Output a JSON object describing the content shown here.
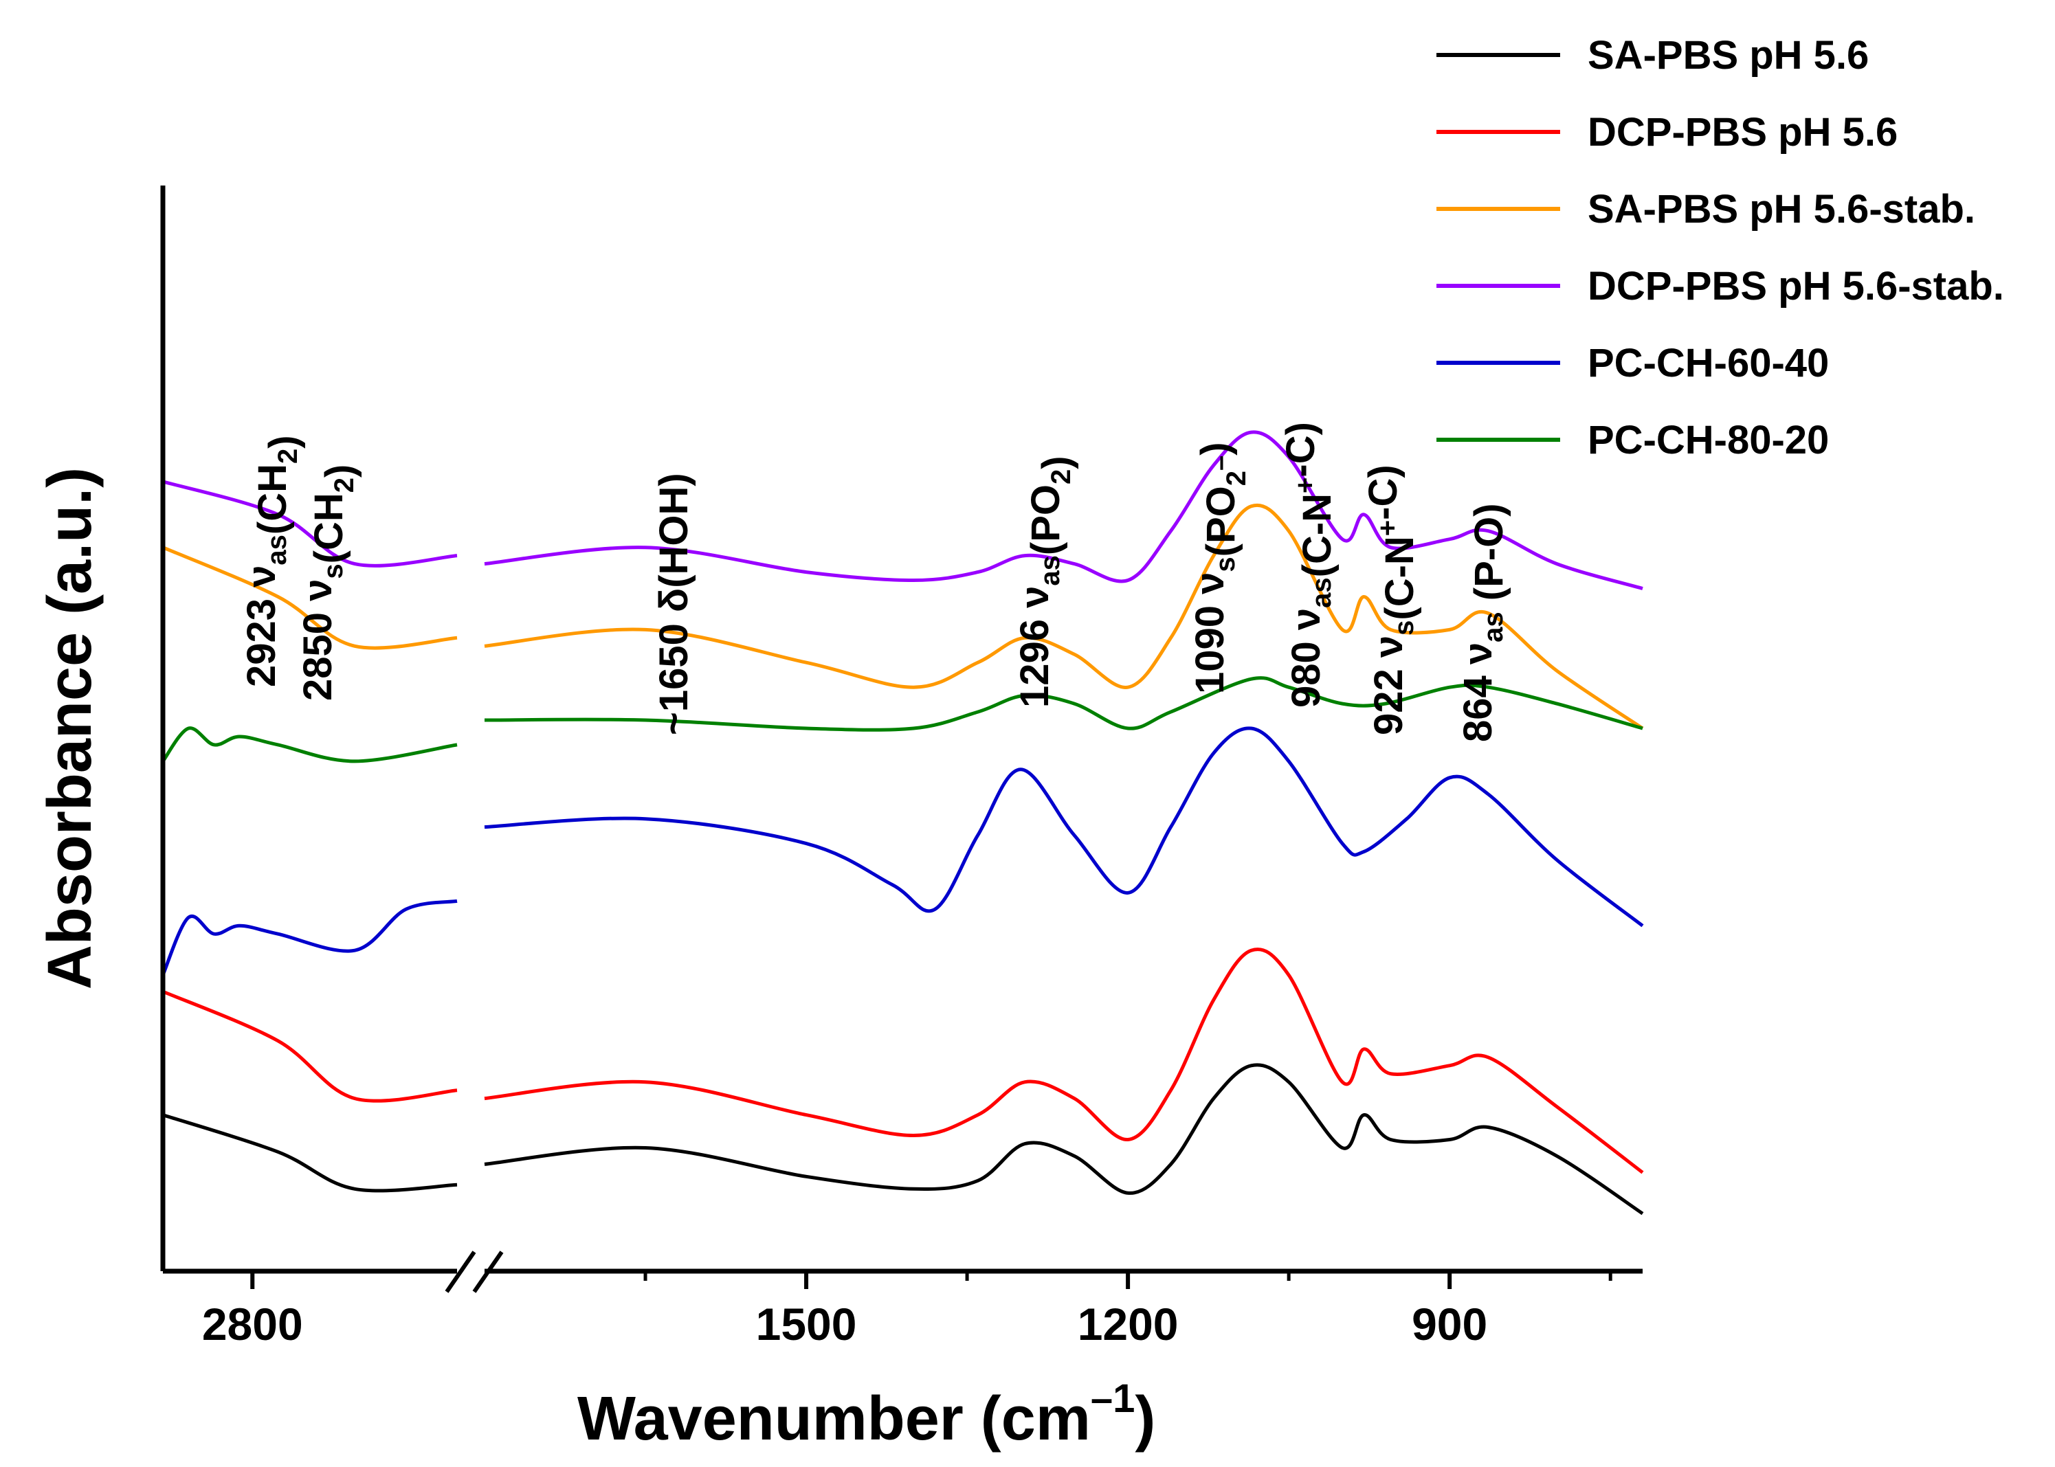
{
  "chart_data": {
    "type": "line",
    "title": "",
    "xlabel": "Wavenumber (cm",
    "xlabel_superscript": "–1",
    "xlabel_close": ")",
    "ylabel": "Absorbance (a.u.)",
    "y_ticks_shown": false,
    "axis_break": true,
    "segments": [
      {
        "name": "high-wavenumber",
        "xlim": [
          2870,
          2640
        ],
        "ticks": [
          2800
        ]
      },
      {
        "name": "fingerprint",
        "xlim": [
          1800,
          720
        ],
        "ticks": [
          1500,
          1200,
          900
        ],
        "minor_ticks": [
          1650,
          1350,
          1050,
          750
        ]
      }
    ],
    "x_tick_labels": [
      "2800",
      "1500",
      "1200",
      "900"
    ],
    "legend": {
      "placement": "top-right",
      "entries": [
        {
          "label": "SA-PBS pH 5.6",
          "color": "#000000"
        },
        {
          "label": "DCP-PBS pH 5.6",
          "color": "#ff0000"
        },
        {
          "label": "SA-PBS pH 5.6-stab.",
          "color": "#ff9900"
        },
        {
          "label": "DCP-PBS pH 5.6-stab.",
          "color": "#9900ff"
        },
        {
          "label": "PC-CH-60-40",
          "color": "#0000cc"
        },
        {
          "label": "PC-CH-80-20",
          "color": "#008000"
        }
      ]
    },
    "annotations": [
      {
        "wavenumber": 2923,
        "lead": "2923 ",
        "mode": "as",
        "group": "(CH",
        "group_sub": "2",
        "close": ")"
      },
      {
        "wavenumber": 2850,
        "lead": "2850 ",
        "mode": "s",
        "group": "(CH",
        "group_sub": "2",
        "close": ")"
      },
      {
        "wavenumber": 1650,
        "lead": "~1650 ",
        "mode_delta": "δ",
        "group": "(HOH)"
      },
      {
        "wavenumber": 1296,
        "lead": "1296 ",
        "mode": "as",
        "group": "(PO",
        "group_sub": "2",
        "close": ")"
      },
      {
        "wavenumber": 1090,
        "lead": "1090 ",
        "mode": "s",
        "group": "(PO",
        "group_sub": "2",
        "group_sup": "–",
        "close": ")"
      },
      {
        "wavenumber": 980,
        "lead": "980 ",
        "mode": "as",
        "group": "(C-N",
        "group_sup": "+",
        "close": "-C)"
      },
      {
        "wavenumber": 922,
        "lead": "922 ",
        "mode": "s",
        "group": "(C-N",
        "group_sup": "+",
        "close": "-C)"
      },
      {
        "wavenumber": 864,
        "lead": "864 ",
        "mode": "as",
        "group": " (P-O)"
      }
    ],
    "greek_nu": "ν",
    "series": [
      {
        "name": "SA-PBS pH 5.6",
        "color": "#000000",
        "offset": 0.8,
        "segment1": [
          [
            2870,
            1.2
          ],
          [
            2780,
            0.75
          ],
          [
            2720,
            0.3
          ],
          [
            2640,
            0.35
          ]
        ],
        "segment2": [
          [
            1800,
            0.6
          ],
          [
            1650,
            0.8
          ],
          [
            1500,
            0.45
          ],
          [
            1400,
            0.3
          ],
          [
            1340,
            0.4
          ],
          [
            1296,
            0.85
          ],
          [
            1250,
            0.7
          ],
          [
            1200,
            0.25
          ],
          [
            1160,
            0.6
          ],
          [
            1120,
            1.4
          ],
          [
            1085,
            1.8
          ],
          [
            1050,
            1.6
          ],
          [
            1000,
            0.8
          ],
          [
            980,
            1.2
          ],
          [
            955,
            0.9
          ],
          [
            900,
            0.9
          ],
          [
            864,
            1.05
          ],
          [
            800,
            0.7
          ],
          [
            720,
            0.0
          ]
        ]
      },
      {
        "name": "DCP-PBS pH 5.6",
        "color": "#ff0000",
        "offset": 2.0,
        "segment1": [
          [
            2870,
            2.7
          ],
          [
            2780,
            2.1
          ],
          [
            2720,
            1.4
          ],
          [
            2640,
            1.5
          ]
        ],
        "segment2": [
          [
            1800,
            1.4
          ],
          [
            1650,
            1.6
          ],
          [
            1500,
            1.2
          ],
          [
            1400,
            0.95
          ],
          [
            1340,
            1.2
          ],
          [
            1296,
            1.6
          ],
          [
            1250,
            1.4
          ],
          [
            1200,
            0.9
          ],
          [
            1160,
            1.5
          ],
          [
            1120,
            2.6
          ],
          [
            1085,
            3.2
          ],
          [
            1050,
            2.9
          ],
          [
            1000,
            1.6
          ],
          [
            980,
            2.0
          ],
          [
            955,
            1.7
          ],
          [
            900,
            1.8
          ],
          [
            864,
            1.9
          ],
          [
            800,
            1.3
          ],
          [
            720,
            0.5
          ]
        ]
      },
      {
        "name": "SA-PBS pH 5.6-stab.",
        "color": "#ff9900",
        "offset": 7.2,
        "segment1": [
          [
            2870,
            8.1
          ],
          [
            2780,
            7.5
          ],
          [
            2720,
            6.9
          ],
          [
            2640,
            7.0
          ]
        ],
        "segment2": [
          [
            1800,
            6.9
          ],
          [
            1650,
            7.1
          ],
          [
            1500,
            6.7
          ],
          [
            1400,
            6.4
          ],
          [
            1340,
            6.7
          ],
          [
            1296,
            7.0
          ],
          [
            1250,
            6.8
          ],
          [
            1200,
            6.4
          ],
          [
            1160,
            7.0
          ],
          [
            1120,
            8.0
          ],
          [
            1085,
            8.6
          ],
          [
            1050,
            8.3
          ],
          [
            1000,
            7.1
          ],
          [
            980,
            7.5
          ],
          [
            955,
            7.1
          ],
          [
            900,
            7.1
          ],
          [
            864,
            7.3
          ],
          [
            800,
            6.6
          ],
          [
            720,
            5.9
          ]
        ]
      },
      {
        "name": "DCP-PBS pH 5.6-stab.",
        "color": "#9900ff",
        "offset": 8.6,
        "segment1": [
          [
            2870,
            8.9
          ],
          [
            2780,
            8.5
          ],
          [
            2720,
            7.9
          ],
          [
            2640,
            8.0
          ]
        ],
        "segment2": [
          [
            1800,
            7.9
          ],
          [
            1650,
            8.1
          ],
          [
            1500,
            7.8
          ],
          [
            1400,
            7.7
          ],
          [
            1340,
            7.8
          ],
          [
            1296,
            8.0
          ],
          [
            1250,
            7.9
          ],
          [
            1200,
            7.7
          ],
          [
            1160,
            8.3
          ],
          [
            1120,
            9.1
          ],
          [
            1085,
            9.5
          ],
          [
            1050,
            9.2
          ],
          [
            1000,
            8.2
          ],
          [
            980,
            8.5
          ],
          [
            955,
            8.1
          ],
          [
            900,
            8.2
          ],
          [
            864,
            8.3
          ],
          [
            800,
            7.9
          ],
          [
            720,
            7.6
          ]
        ]
      },
      {
        "name": "PC-CH-60-40",
        "color": "#0000cc",
        "offset": 3.5,
        "segment1": [
          [
            2870,
            2.9
          ],
          [
            2850,
            3.6
          ],
          [
            2830,
            3.4
          ],
          [
            2810,
            3.5
          ],
          [
            2780,
            3.4
          ],
          [
            2720,
            3.2
          ],
          [
            2680,
            3.7
          ],
          [
            2640,
            3.8
          ]
        ],
        "segment2": [
          [
            1800,
            4.7
          ],
          [
            1650,
            4.8
          ],
          [
            1500,
            4.5
          ],
          [
            1420,
            4.0
          ],
          [
            1380,
            3.7
          ],
          [
            1340,
            4.6
          ],
          [
            1300,
            5.4
          ],
          [
            1250,
            4.6
          ],
          [
            1200,
            3.9
          ],
          [
            1160,
            4.7
          ],
          [
            1120,
            5.6
          ],
          [
            1085,
            5.9
          ],
          [
            1050,
            5.5
          ],
          [
            1000,
            4.5
          ],
          [
            980,
            4.4
          ],
          [
            940,
            4.8
          ],
          [
            900,
            5.3
          ],
          [
            864,
            5.1
          ],
          [
            800,
            4.3
          ],
          [
            720,
            3.5
          ]
        ]
      },
      {
        "name": "PC-CH-80-20",
        "color": "#008000",
        "offset": 5.4,
        "segment1": [
          [
            2870,
            5.5
          ],
          [
            2850,
            5.9
          ],
          [
            2830,
            5.7
          ],
          [
            2810,
            5.8
          ],
          [
            2780,
            5.7
          ],
          [
            2720,
            5.5
          ],
          [
            2640,
            5.7
          ]
        ],
        "segment2": [
          [
            1800,
            6.0
          ],
          [
            1650,
            6.0
          ],
          [
            1500,
            5.9
          ],
          [
            1400,
            5.9
          ],
          [
            1340,
            6.1
          ],
          [
            1296,
            6.3
          ],
          [
            1250,
            6.2
          ],
          [
            1200,
            5.9
          ],
          [
            1160,
            6.1
          ],
          [
            1085,
            6.5
          ],
          [
            1050,
            6.4
          ],
          [
            1000,
            6.2
          ],
          [
            960,
            6.2
          ],
          [
            900,
            6.4
          ],
          [
            864,
            6.4
          ],
          [
            800,
            6.2
          ],
          [
            720,
            5.9
          ]
        ]
      }
    ],
    "ylim": [
      -0.7,
      12.5
    ]
  }
}
